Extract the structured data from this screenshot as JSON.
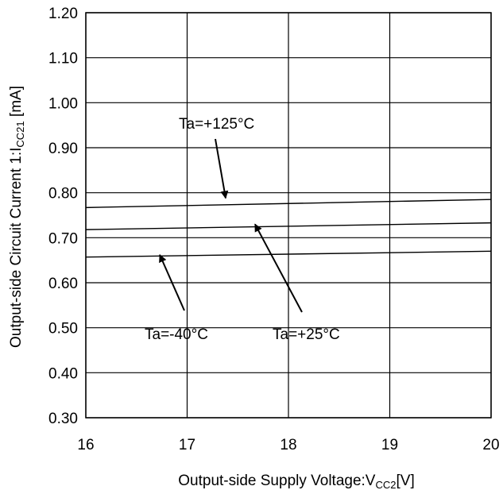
{
  "chart_data": {
    "type": "line",
    "xlabel": "Output-side Supply Voltage:V",
    "xlabel_sub": "CC2",
    "xlabel_suffix": "[V]",
    "ylabel": "Output-side Circuit Current 1:I",
    "ylabel_sub": "CC21",
    "ylabel_suffix": " [mA]",
    "xlim": [
      16,
      20
    ],
    "ylim": [
      0.3,
      1.2
    ],
    "x_ticks": [
      "16",
      "17",
      "18",
      "19",
      "20"
    ],
    "y_ticks": [
      "0.30",
      "0.40",
      "0.50",
      "0.60",
      "0.70",
      "0.80",
      "0.90",
      "1.00",
      "1.10",
      "1.20"
    ],
    "grid": true,
    "series": [
      {
        "name": "Ta=+125°C",
        "x": [
          16,
          20
        ],
        "y": [
          0.767,
          0.785
        ]
      },
      {
        "name": "Ta=+25°C",
        "x": [
          16,
          20
        ],
        "y": [
          0.718,
          0.733
        ]
      },
      {
        "name": "Ta=-40°C",
        "x": [
          16,
          20
        ],
        "y": [
          0.657,
          0.67
        ]
      }
    ],
    "annotations": [
      {
        "text": "Ta=+125°C",
        "series": 0,
        "arrow_to": [
          17.38,
          0.788
        ]
      },
      {
        "text": "Ta=+25°C",
        "series": 1,
        "arrow_to": [
          17.67,
          0.73
        ]
      },
      {
        "text": "Ta=-40°C",
        "series": 2,
        "arrow_to": [
          16.73,
          0.662
        ]
      }
    ]
  }
}
